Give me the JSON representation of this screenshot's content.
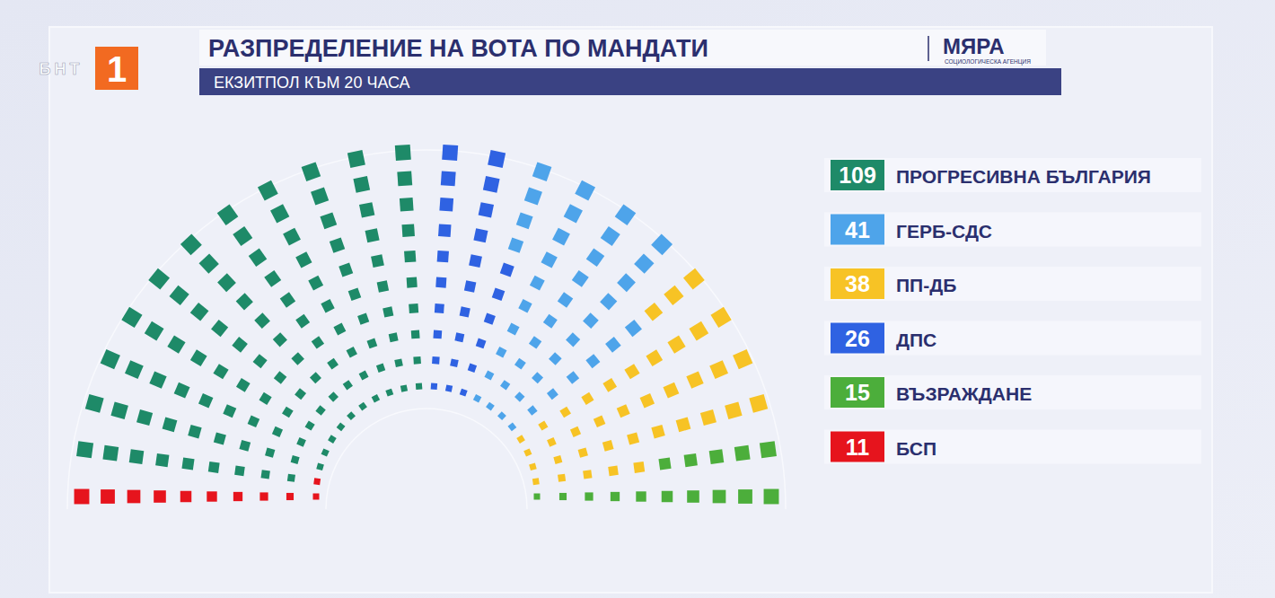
{
  "chart_data": {
    "type": "parliament",
    "title": "РАЗПРЕДЕЛЕНИЕ НА ВОТА ПО МАНДАТИ",
    "subtitle": "ЕКЗИТПОЛ КЪМ 20 ЧАСА",
    "categories": [
      "ПРОГРЕСИВНА БЪЛГАРИЯ",
      "ГЕРБ-СДС",
      "ПП-ДБ",
      "ДПС",
      "ВЪЗРАЖДАНЕ",
      "БСП"
    ],
    "values": [
      109,
      41,
      38,
      26,
      15,
      11
    ],
    "colors": [
      "#1e8a68",
      "#4ea4ea",
      "#f7c325",
      "#2f62e2",
      "#4cae3b",
      "#e6141d"
    ],
    "data_labels": true,
    "legend": "right",
    "tick_labels": false,
    "annotations": [
      "МЯРА",
      "СОЦИОЛОГИЧЕСКА АГЕНЦИЯ",
      "БНТ",
      "1"
    ]
  }
}
